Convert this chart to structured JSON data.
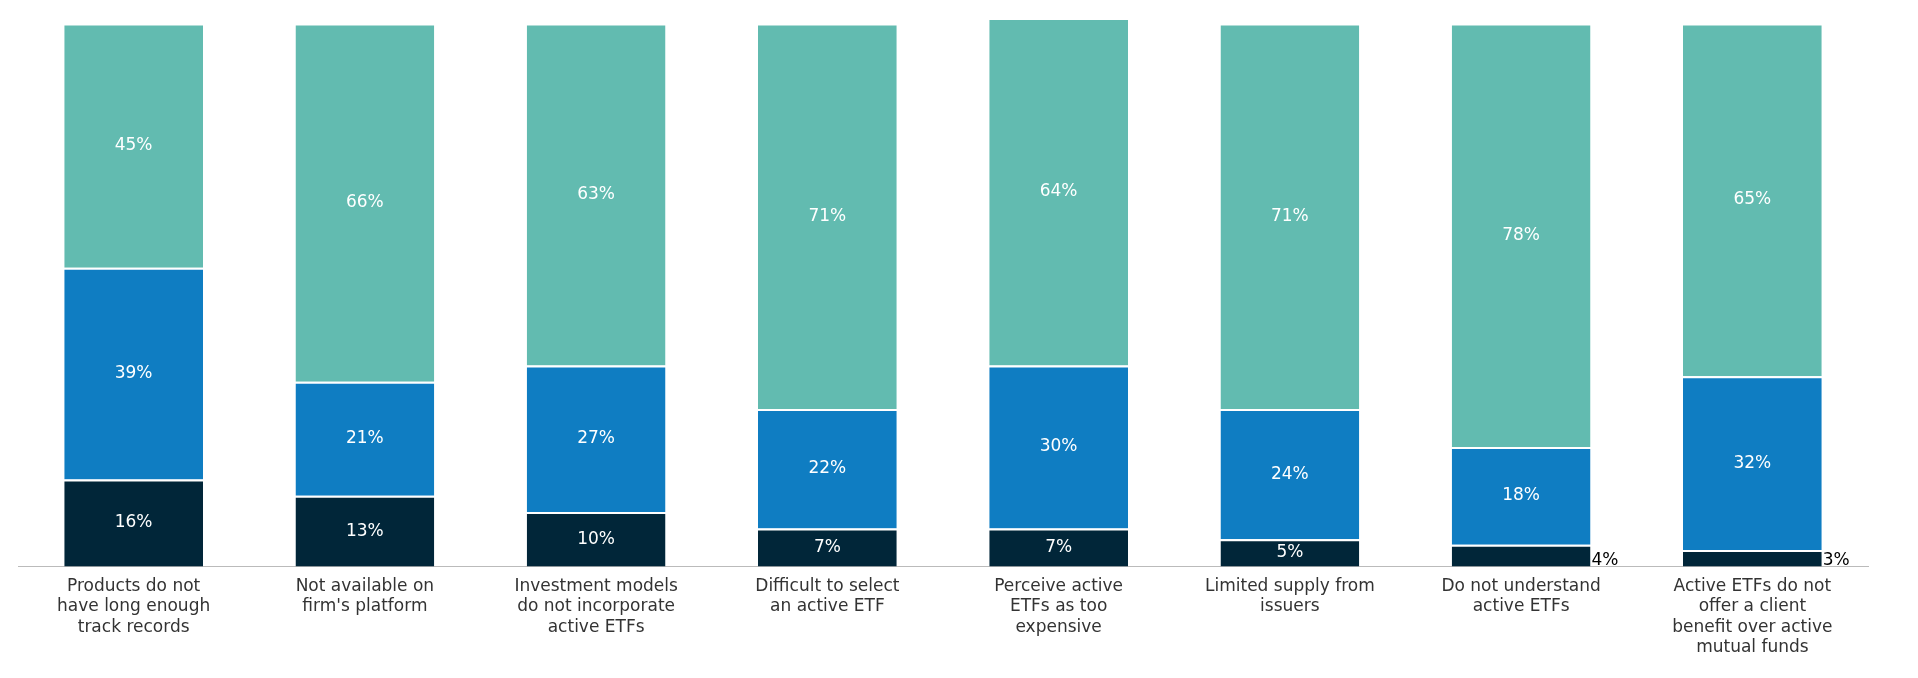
{
  "chart_data": {
    "type": "bar",
    "stacked": true,
    "tick_labels": "x",
    "grid": false,
    "legend": false,
    "categories": [
      "Products do not have long enough track records",
      "Not available on firm's platform",
      "Investment models do not incorporate active ETFs",
      "Difficult to select an active ETF",
      "Perceive active ETFs as too expensive",
      "Limited supply from issuers",
      "Do not understand active ETFs",
      "Active ETFs do not offer a client benefit over active mutual funds"
    ],
    "series": [
      {
        "color": "#012639",
        "values": [
          16,
          13,
          10,
          7,
          7,
          5,
          4,
          3
        ],
        "value_labels": [
          "16%",
          "13%",
          "10%",
          "7%",
          "7%",
          "5%",
          "4%",
          "3%"
        ]
      },
      {
        "color": "#0f7dc2",
        "values": [
          39,
          21,
          27,
          22,
          30,
          24,
          18,
          32
        ],
        "value_labels": [
          "39%",
          "21%",
          "27%",
          "22%",
          "30%",
          "24%",
          "18%",
          "32%"
        ]
      },
      {
        "color": "#62bbb0",
        "values": [
          45,
          66,
          63,
          71,
          64,
          71,
          78,
          65
        ],
        "value_labels": [
          "45%",
          "66%",
          "63%",
          "71%",
          "64%",
          "71%",
          "78%",
          "65%"
        ]
      }
    ]
  }
}
